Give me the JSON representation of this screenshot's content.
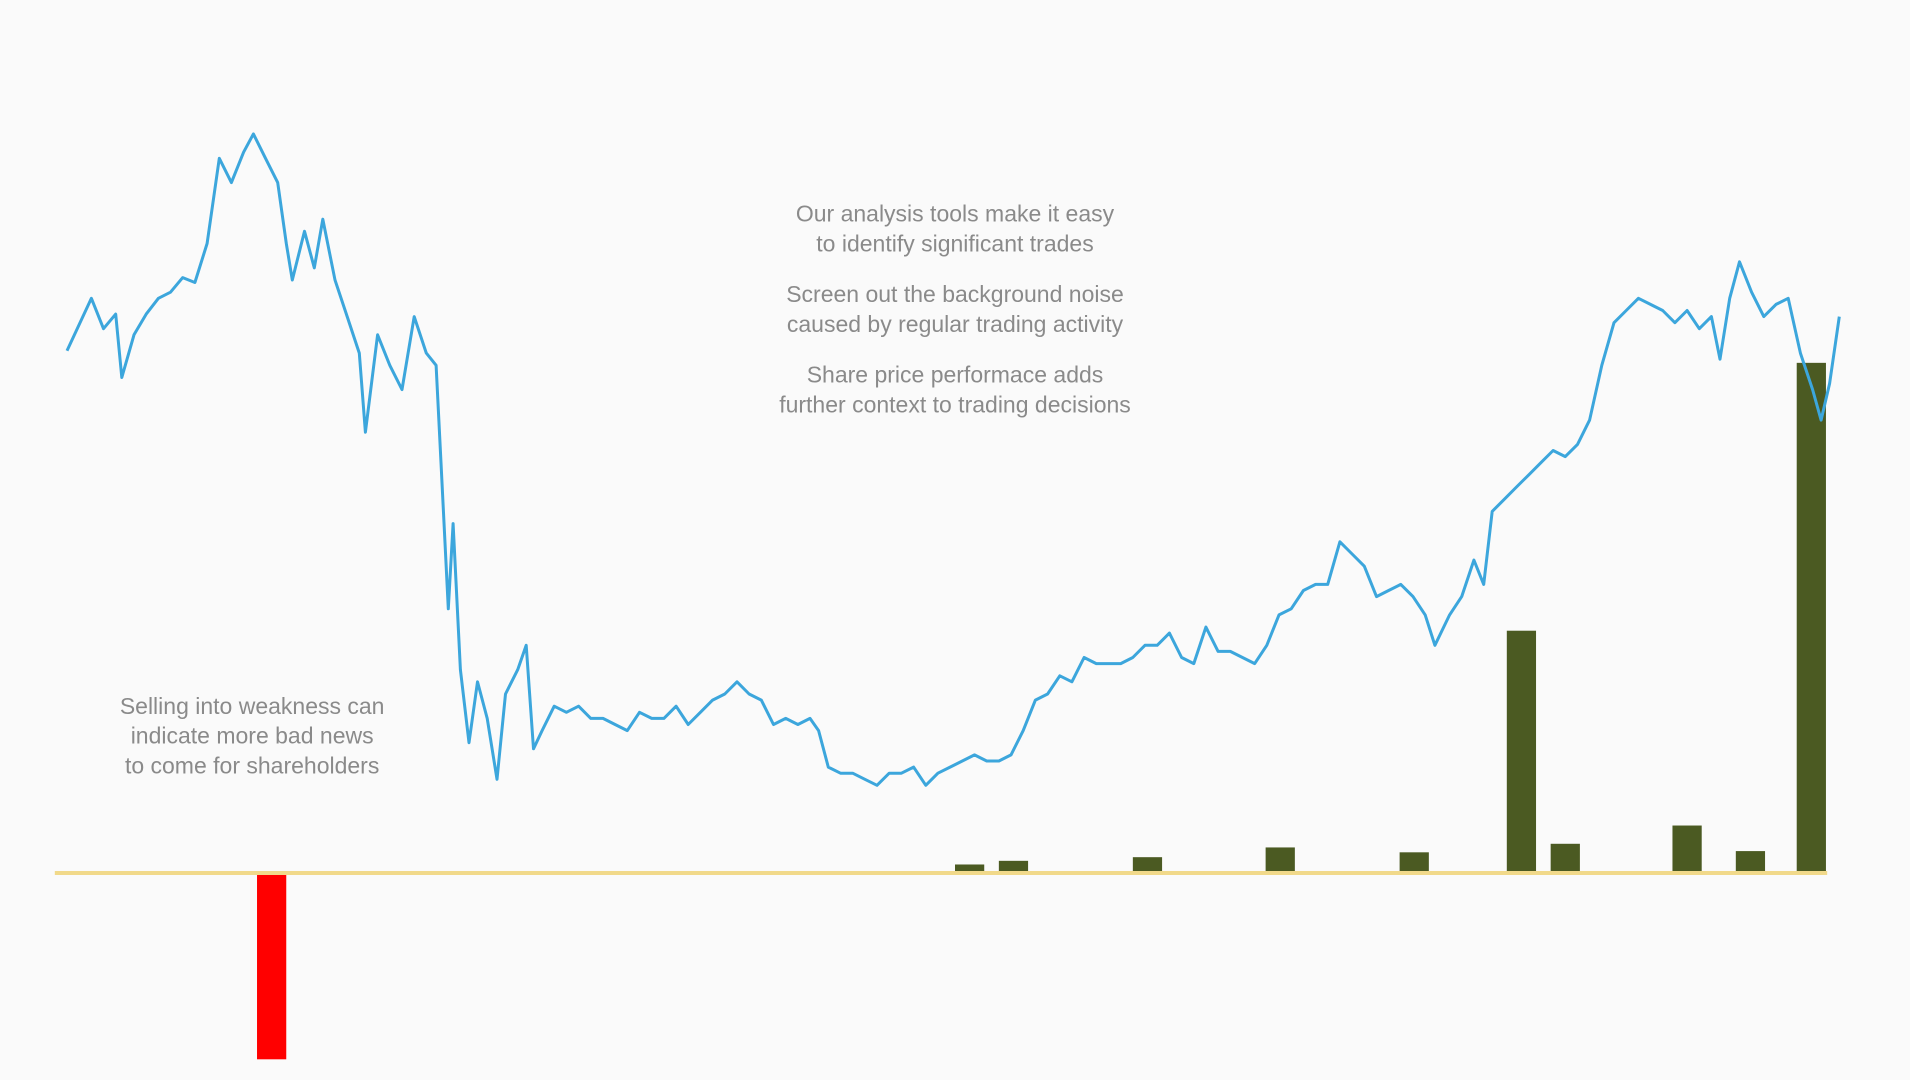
{
  "chart_data": {
    "type": "combo",
    "xlim": [
      0,
      1568
    ],
    "ylim": [
      -170,
      717
    ],
    "reference_line": {
      "value": 0,
      "color": "#f1d98a"
    },
    "annotations": [
      {
        "lines": [
          "Our analysis tools make it easy",
          "to identify significant trades"
        ]
      },
      {
        "lines": [
          "Screen out the background noise",
          "caused by regular trading activity"
        ]
      },
      {
        "lines": [
          "Share price performace adds",
          "further context to trading decisions"
        ]
      },
      {
        "lines": [
          "Selling into weakness can",
          "indicate more bad news",
          "to come for shareholders"
        ]
      }
    ],
    "series": [
      {
        "type": "line",
        "color": "#3ca6dc",
        "x": [
          55,
          75,
          85,
          95,
          100,
          110,
          120,
          130,
          140,
          150,
          160,
          170,
          180,
          190,
          200,
          208,
          218,
          228,
          235,
          240,
          250,
          258,
          265,
          275,
          285,
          295,
          300,
          310,
          320,
          330,
          340,
          350,
          358,
          362,
          368,
          372,
          378,
          385,
          392,
          400,
          408,
          415,
          425,
          432,
          438,
          445,
          455,
          465,
          475,
          485,
          495,
          505,
          515,
          525,
          535,
          545,
          555,
          565,
          575,
          585,
          595,
          605,
          615,
          625,
          635,
          645,
          655,
          665,
          672,
          680,
          690,
          700,
          710,
          720,
          730,
          740,
          750,
          760,
          770,
          780,
          790,
          800,
          810,
          820,
          830,
          840,
          850,
          860,
          870,
          880,
          890,
          900,
          910,
          920,
          930,
          940,
          950,
          960,
          970,
          980,
          990,
          1000,
          1010,
          1020,
          1030,
          1040,
          1050,
          1060,
          1070,
          1080,
          1090,
          1100,
          1110,
          1120,
          1130,
          1140,
          1150,
          1160,
          1170,
          1178,
          1190,
          1200,
          1210,
          1218,
          1225,
          1235,
          1245,
          1255,
          1265,
          1275,
          1285,
          1295,
          1305,
          1315,
          1325,
          1335,
          1345,
          1355,
          1365,
          1375,
          1385,
          1395,
          1405,
          1412,
          1420,
          1428,
          1438,
          1448,
          1458,
          1468,
          1478,
          1488,
          1495,
          1502,
          1510
        ],
        "values": [
          429,
          472,
          447,
          459,
          407,
          442,
          459,
          472,
          477,
          489,
          485,
          517,
          587,
          567,
          592,
          607,
          587,
          567,
          517,
          487,
          527,
          497,
          537,
          487,
          457,
          427,
          362,
          442,
          417,
          397,
          457,
          427,
          417,
          337,
          217,
          287,
          167,
          107,
          157,
          127,
          77,
          147,
          167,
          187,
          102,
          117,
          137,
          132,
          137,
          127,
          127,
          122,
          117,
          132,
          127,
          127,
          137,
          122,
          132,
          142,
          147,
          157,
          147,
          142,
          122,
          127,
          122,
          127,
          117,
          87,
          82,
          82,
          77,
          72,
          82,
          82,
          87,
          72,
          82,
          87,
          92,
          97,
          92,
          92,
          97,
          117,
          142,
          147,
          162,
          157,
          177,
          172,
          172,
          172,
          177,
          187,
          187,
          197,
          177,
          172,
          202,
          182,
          182,
          177,
          172,
          187,
          212,
          217,
          232,
          237,
          237,
          272,
          262,
          252,
          227,
          232,
          237,
          227,
          212,
          187,
          212,
          227,
          257,
          237,
          297,
          307,
          317,
          327,
          337,
          347,
          342,
          352,
          372,
          417,
          452,
          462,
          472,
          467,
          462,
          452,
          462,
          447,
          457,
          422,
          472,
          502,
          477,
          457,
          467,
          472,
          427,
          397,
          372,
          402,
          457
        ]
      },
      {
        "type": "bar",
        "color": "#4b5a22",
        "x": [
          796,
          832,
          942,
          1051,
          1161,
          1249,
          1285,
          1385,
          1437,
          1487
        ],
        "values": [
          7,
          10,
          13,
          21,
          17,
          199,
          24,
          39,
          18,
          419
        ]
      },
      {
        "type": "bar",
        "color": "#ff0000",
        "x": [
          223
        ],
        "values": [
          -153
        ]
      }
    ]
  }
}
